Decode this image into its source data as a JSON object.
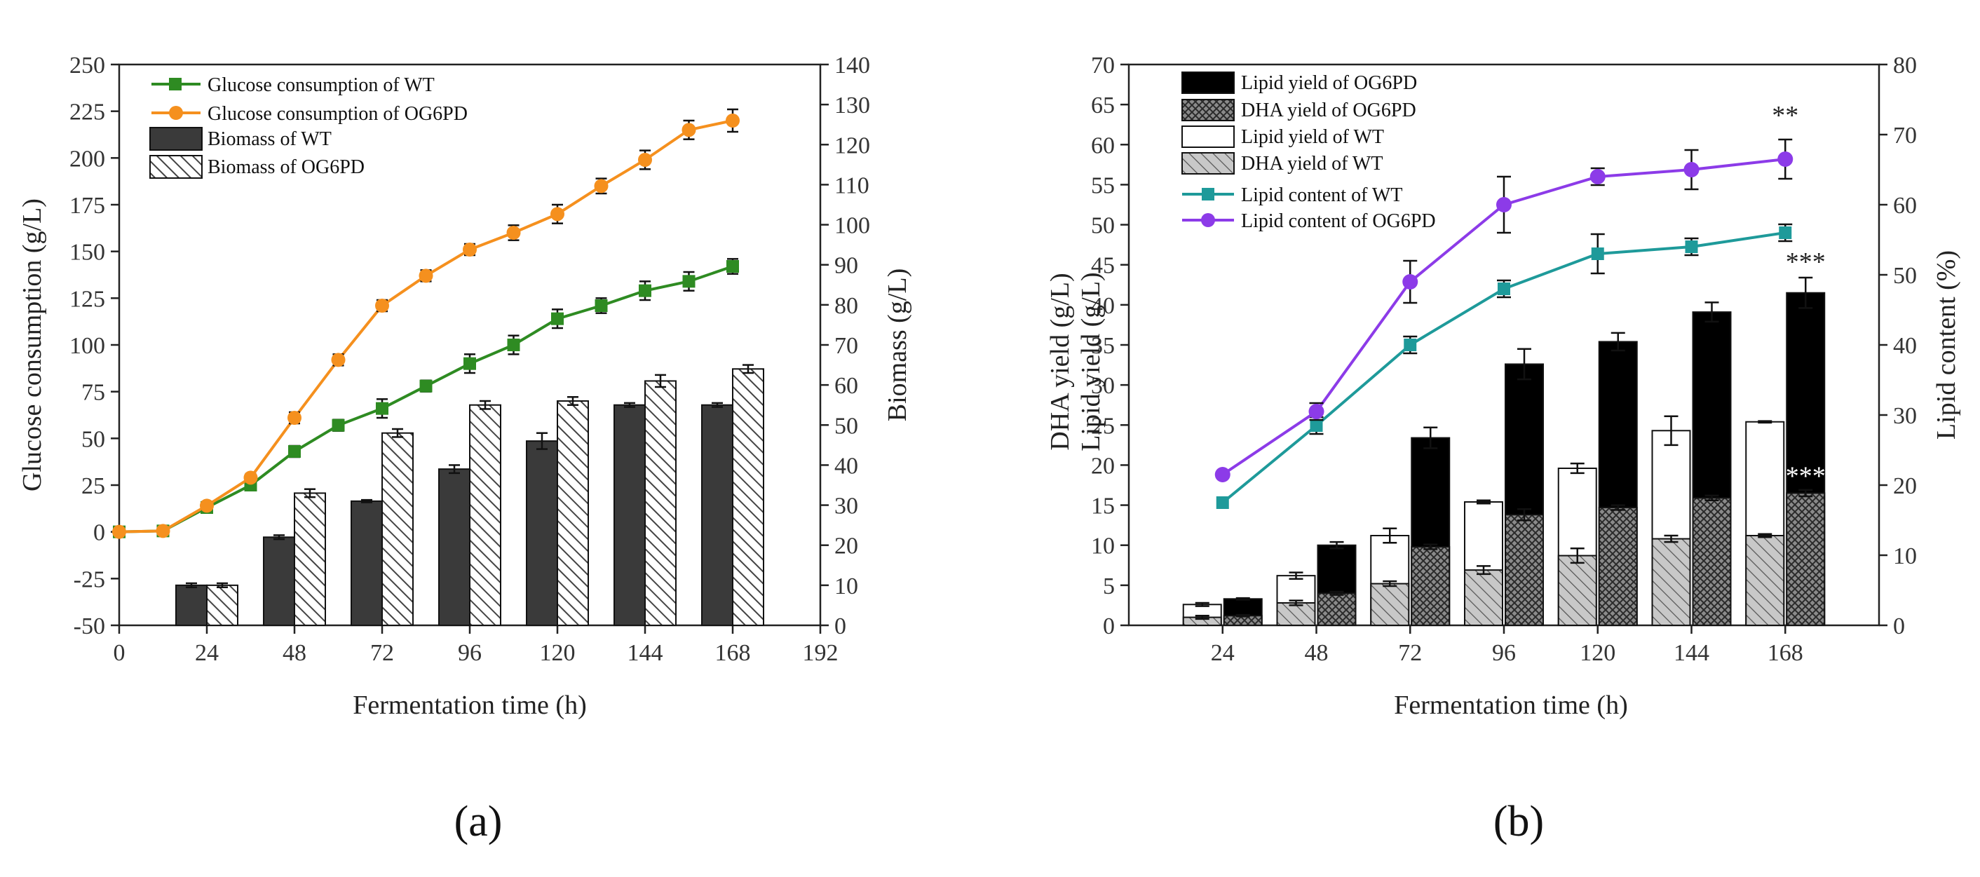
{
  "chart_data": [
    {
      "panel_label": "(a)",
      "type": "bar+line",
      "xlabel": "Fermentation time (h)",
      "ylabel_left": "Glucose consumption (g/L)",
      "ylabel_right": "Biomass (g/L)",
      "xlim": [
        0,
        192
      ],
      "ylim_left": [
        -50,
        250
      ],
      "ylim_right": [
        0,
        140
      ],
      "x_ticks": [
        0,
        24,
        48,
        72,
        96,
        120,
        144,
        168,
        192
      ],
      "y_left_ticks": [
        -50,
        -25,
        0,
        25,
        50,
        75,
        100,
        125,
        150,
        175,
        200,
        225,
        250
      ],
      "y_right_ticks": [
        0,
        10,
        20,
        30,
        40,
        50,
        60,
        70,
        80,
        90,
        100,
        110,
        120,
        130,
        140
      ],
      "line_x": [
        0,
        12,
        24,
        36,
        48,
        60,
        72,
        84,
        96,
        108,
        120,
        132,
        144,
        156,
        168
      ],
      "lines": [
        {
          "name": "Glucose consumption of WT",
          "color": "#2e8b22",
          "marker": "square",
          "values": [
            0,
            0.5,
            13,
            25,
            43,
            57,
            66,
            78,
            90,
            100,
            114,
            121,
            129,
            134,
            142
          ],
          "errors": [
            0,
            1,
            2,
            2,
            3,
            3,
            5,
            3,
            5,
            5,
            5,
            4,
            5,
            5,
            4
          ]
        },
        {
          "name": "Glucose consumption of OG6PD",
          "color": "#f5901e",
          "marker": "circle",
          "values": [
            0,
            0.5,
            14,
            29,
            61,
            92,
            121,
            137,
            151,
            160,
            170,
            185,
            199,
            215,
            220
          ],
          "errors": [
            0,
            1,
            2,
            2,
            3,
            3,
            3,
            3,
            3,
            4,
            5,
            4,
            5,
            5,
            6
          ]
        }
      ],
      "bar_categories": [
        24,
        48,
        72,
        96,
        120,
        144,
        168
      ],
      "bars": [
        {
          "name": "Biomass of WT",
          "fill": "solid-dark",
          "color": "#3a3a3a",
          "values": [
            10,
            22,
            31,
            39,
            46,
            55,
            55
          ],
          "errors": [
            0.5,
            0.5,
            0.3,
            1,
            2,
            0.5,
            0.5
          ]
        },
        {
          "name": "Biomass of  OG6PD",
          "fill": "hatched",
          "color": "#555555",
          "values": [
            10,
            33,
            48,
            55,
            56,
            61,
            64
          ],
          "errors": [
            0.5,
            1,
            1,
            1,
            1,
            1.5,
            1
          ]
        }
      ],
      "legend_position": "top-left"
    },
    {
      "panel_label": "(b)",
      "type": "stacked-bar+line",
      "xlabel": "Fermentation time (h)",
      "ylabel_left_lines": [
        "DHA yield (g/L)",
        "Lipid yield (g/L)"
      ],
      "ylabel_right": "Lipid content (%)",
      "categories": [
        "24",
        "48",
        "72",
        "96",
        "120",
        "144",
        "168"
      ],
      "ylim_left": [
        0,
        70
      ],
      "ylim_right": [
        0,
        80
      ],
      "y_left_ticks": [
        0,
        5,
        10,
        15,
        20,
        25,
        30,
        35,
        40,
        45,
        50,
        55,
        60,
        65,
        70
      ],
      "y_right_ticks": [
        0,
        10,
        20,
        30,
        40,
        50,
        60,
        70,
        80
      ],
      "bars_wt": {
        "dha_name": "DHA  yield of WT",
        "lipid_name": "Lipid yield of WT",
        "dha": [
          1.0,
          2.8,
          5.2,
          6.9,
          8.7,
          10.8,
          11.2
        ],
        "dha_err": [
          0.2,
          0.3,
          0.3,
          0.5,
          0.9,
          0.4,
          0.2
        ],
        "lipid": [
          2.6,
          6.2,
          11.2,
          15.4,
          19.6,
          24.3,
          25.4
        ],
        "lipid_err": [
          0.2,
          0.4,
          0.9,
          0.2,
          0.6,
          1.8,
          0.1
        ]
      },
      "bars_og6pd": {
        "dha_name": "DHA  yield of OG6PD",
        "lipid_name": "Lipid yield of OG6PD",
        "dha": [
          1.2,
          4.0,
          9.8,
          13.8,
          14.7,
          15.9,
          16.5
        ],
        "dha_err": [
          0.1,
          0.2,
          0.3,
          0.7,
          0.3,
          0.3,
          0.4
        ],
        "lipid": [
          3.3,
          10.0,
          23.4,
          32.6,
          35.4,
          39.1,
          41.5
        ],
        "lipid_err": [
          0.1,
          0.4,
          1.3,
          1.9,
          1.1,
          1.2,
          1.9
        ]
      },
      "lines": [
        {
          "name": "Lipid content of WT",
          "color": "#1e9a9a",
          "marker": "square",
          "values": [
            17.5,
            28.5,
            40,
            48,
            53,
            54,
            56
          ],
          "errors": [
            0,
            1.2,
            1.2,
            1.2,
            2.8,
            1.2,
            1.2
          ]
        },
        {
          "name": "Lipid content of OG6PD",
          "color": "#8c3be8",
          "marker": "circle",
          "values": [
            21.5,
            30.5,
            49,
            60,
            64,
            65,
            66.5
          ],
          "errors": [
            0,
            1.2,
            3,
            4,
            1.2,
            2.8,
            2.8
          ]
        }
      ],
      "annotations": [
        {
          "text": "**",
          "category": "168",
          "series": "Lipid content of OG6PD",
          "color": "#222222"
        },
        {
          "text": "***",
          "category": "168",
          "series": "Lipid yield of OG6PD",
          "color": "#222222"
        },
        {
          "text": "***",
          "category": "168",
          "series": "DHA  yield of OG6PD",
          "color": "#ffffff"
        }
      ],
      "legend_position": "top-left"
    }
  ]
}
